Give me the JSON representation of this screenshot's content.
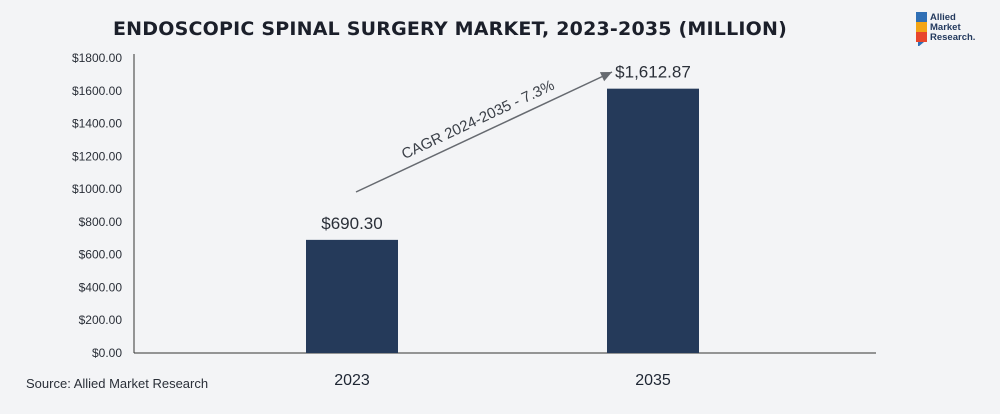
{
  "title": "ENDOSCOPIC SPINAL SURGERY MARKET, 2023-2035 (MILLION)",
  "source": "Source: Allied Market Research",
  "logo": {
    "lines": [
      "Allied",
      "Market",
      "Research."
    ]
  },
  "colors": {
    "bar": "#253a5a",
    "axis": "#333333",
    "background": "#f3f4f6"
  },
  "chart_data": {
    "type": "bar",
    "categories": [
      "2023",
      "2035"
    ],
    "values": [
      690.3,
      1612.87
    ],
    "data_labels": [
      "$690.30",
      "$1,612.87"
    ],
    "yticks": [
      "$0.00",
      "$200.00",
      "$400.00",
      "$600.00",
      "$800.00",
      "$1000.00",
      "$1200.00",
      "$1400.00",
      "$1600.00",
      "$1800.00"
    ],
    "ylim": [
      0,
      1800
    ],
    "annotation": "CAGR 2024-2035 - 7.3%",
    "grid": false,
    "xlabel": "",
    "ylabel": ""
  }
}
